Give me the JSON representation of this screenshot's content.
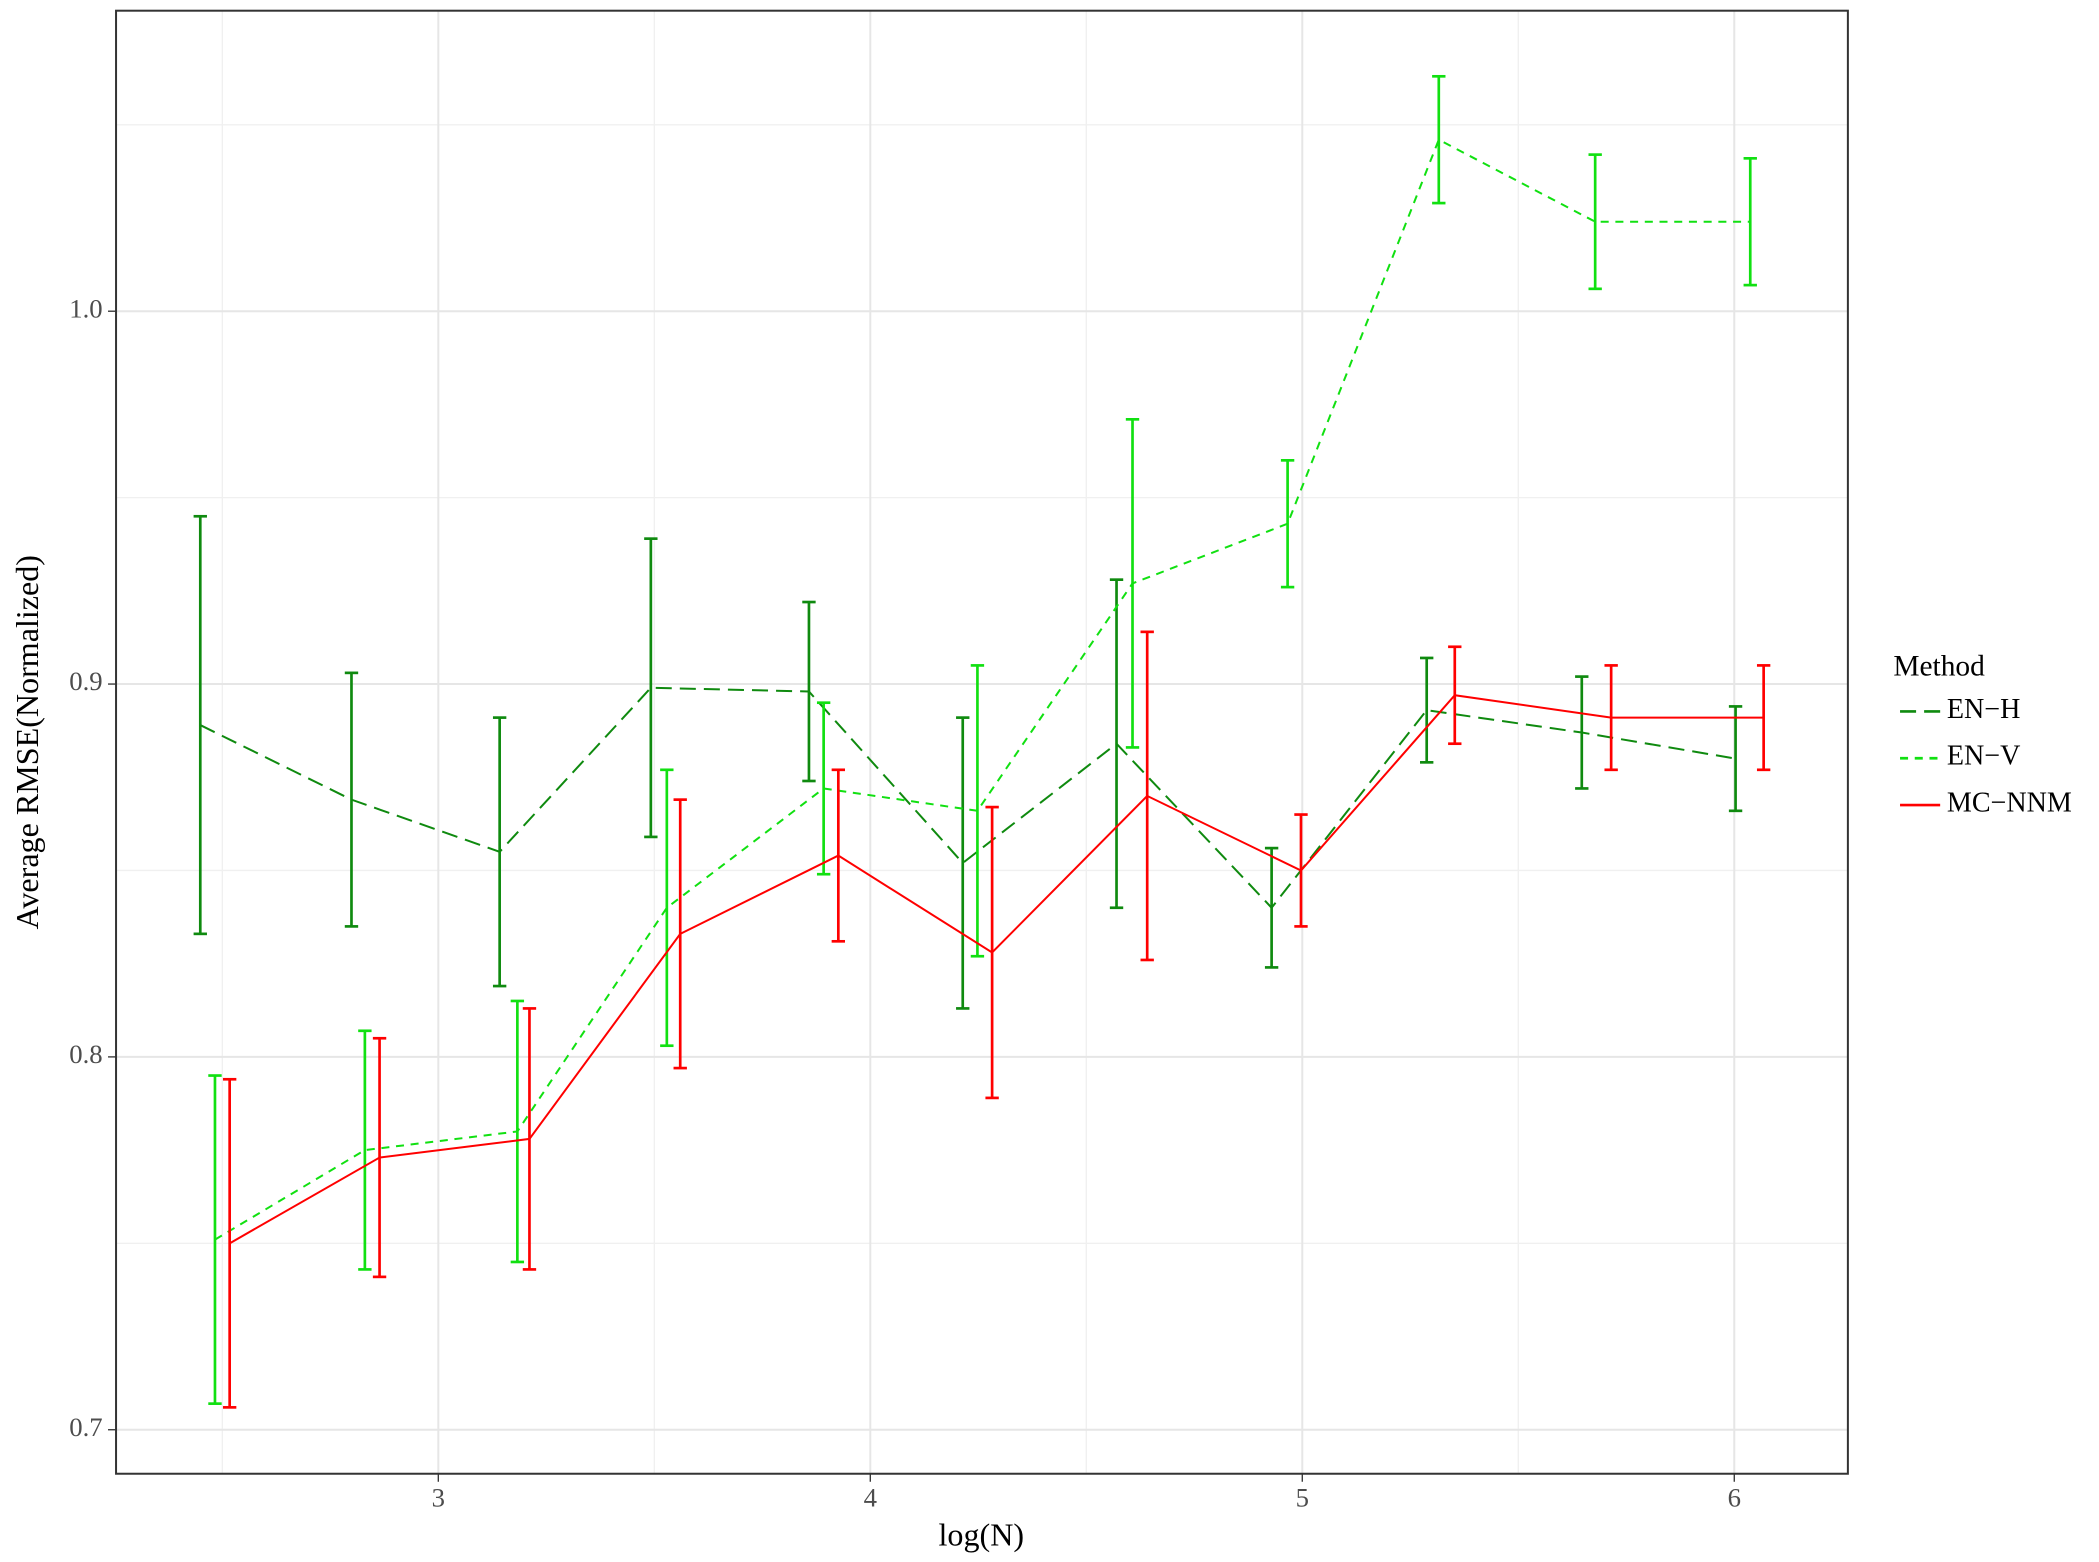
{
  "chart_data": {
    "type": "line",
    "x_label": "log(N)",
    "y_label": "Average RMSE(Normalized)",
    "xlim": [
      2.254,
      6.263
    ],
    "ylim": [
      0.6882,
      1.0806
    ],
    "xticks": [
      3,
      4,
      5,
      6
    ],
    "yticks": [
      0.7,
      0.8,
      0.9,
      {
        "value": 1.0,
        "label": "1.0"
      }
    ],
    "minor_xticks": [
      2.5,
      3.5,
      4.5,
      5.5
    ],
    "minor_yticks": [
      0.75,
      0.85,
      0.95,
      1.05
    ],
    "grid": true,
    "legend_title": "Method",
    "legend_position": "right",
    "series": [
      {
        "name": "EN−H",
        "color": "#0f8a0f",
        "dash": "longdash",
        "x": [
          2.449,
          2.799,
          3.142,
          3.492,
          3.858,
          4.214,
          4.57,
          4.929,
          5.288,
          5.647,
          6.003
        ],
        "values": [
          0.889,
          0.869,
          0.855,
          0.899,
          0.898,
          0.852,
          0.884,
          0.84,
          0.893,
          0.887,
          0.88
        ],
        "errors": [
          0.056,
          0.034,
          0.036,
          0.04,
          0.024,
          0.039,
          0.044,
          0.016,
          0.014,
          0.015,
          0.014
        ]
      },
      {
        "name": "EN−V",
        "color": "#11e011",
        "dash": "dashed",
        "x": [
          2.483,
          2.83,
          3.183,
          3.529,
          3.892,
          4.248,
          4.607,
          4.966,
          5.316,
          5.678,
          6.037
        ],
        "values": [
          0.751,
          0.775,
          0.78,
          0.84,
          0.872,
          0.866,
          0.927,
          0.943,
          1.046,
          1.024,
          1.024
        ],
        "errors": [
          0.044,
          0.032,
          0.035,
          0.037,
          0.023,
          0.039,
          0.044,
          0.017,
          0.017,
          0.018,
          0.017
        ]
      },
      {
        "name": "MC−NNM",
        "color": "#ff0000",
        "dash": "solid",
        "x": [
          2.517,
          2.864,
          3.211,
          3.56,
          3.926,
          4.282,
          4.641,
          4.997,
          5.353,
          5.715,
          6.068
        ],
        "values": [
          0.75,
          0.773,
          0.778,
          0.833,
          0.854,
          0.828,
          0.87,
          0.85,
          0.897,
          0.891,
          0.891
        ],
        "errors": [
          0.044,
          0.032,
          0.035,
          0.036,
          0.023,
          0.039,
          0.044,
          0.015,
          0.013,
          0.014,
          0.014
        ]
      }
    ]
  }
}
